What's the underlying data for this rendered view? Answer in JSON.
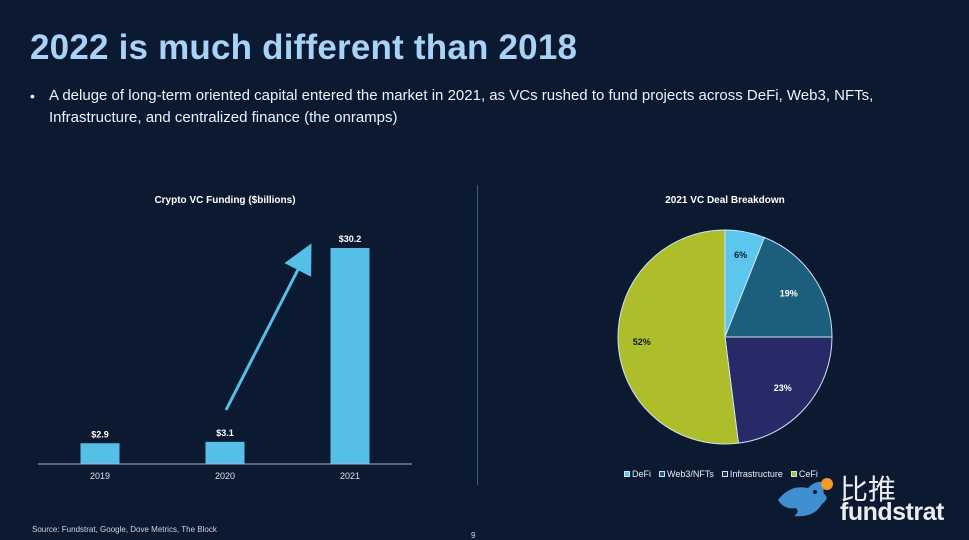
{
  "slide": {
    "title": "2022 is much different than 2018",
    "bullet": "A deluge of long-term oriented capital entered the market in 2021, as VCs rushed to fund projects across DeFi, Web3, NFTs, Infrastructure, and centralized finance (the onramps)",
    "bullet_marker": "•",
    "source": "Source: Fundstrat, Google, Dove Metrics, The Block",
    "page_number": "9"
  },
  "watermark": {
    "chinese": "比推",
    "brand": "fundstrat"
  },
  "colors": {
    "background": "#0c1a31",
    "title": "#a8d2f6",
    "bar": "#55bfe8",
    "defi": "#5cc6ef",
    "web3": "#1b5f7c",
    "infrastructure": "#272a66",
    "cefi": "#adbe2a"
  },
  "chart_data": [
    {
      "type": "bar",
      "title": "Crypto VC Funding ($billions)",
      "categories": [
        "2019",
        "2020",
        "2021"
      ],
      "values": [
        2.9,
        3.1,
        30.2
      ],
      "value_labels": [
        "$2.9",
        "$3.1",
        "$30.2"
      ],
      "ylim": [
        0,
        30.2
      ],
      "xlabel": "",
      "ylabel": "",
      "annotation": "arrow-up-trend"
    },
    {
      "type": "pie",
      "title": "2021 VC Deal Breakdown",
      "labels": [
        "DeFi",
        "Web3/NFTs",
        "Infrastructure",
        "CeFi"
      ],
      "values": [
        6,
        19,
        23,
        52
      ],
      "value_labels": [
        "6%",
        "19%",
        "23%",
        "52%"
      ],
      "legend_position": "bottom"
    }
  ]
}
